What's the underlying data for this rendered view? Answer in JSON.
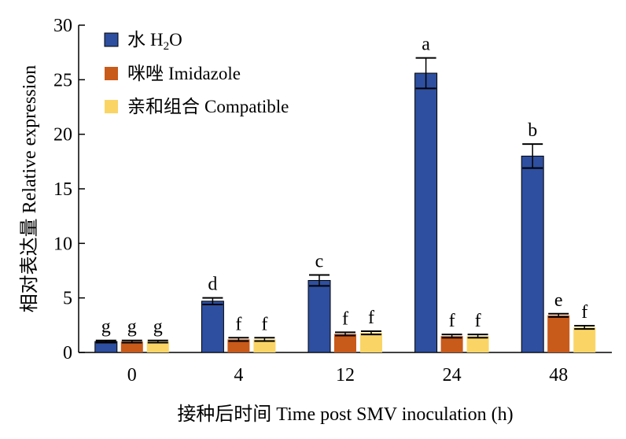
{
  "chart_data": {
    "type": "bar",
    "xlabel": "接种后时间 Time post SMV inoculation (h)",
    "ylabel": "相对表达量 Relative expression",
    "categories": [
      "0",
      "4",
      "12",
      "24",
      "48"
    ],
    "ylim": [
      0,
      30
    ],
    "yticks": [
      "0",
      "5",
      "10",
      "15",
      "20",
      "25",
      "30"
    ],
    "grid": false,
    "legend_position": "top-left",
    "series": [
      {
        "name": "水 H2O",
        "legend_cn": "水",
        "legend_en": "H",
        "legend_sub": "2",
        "legend_end": "O",
        "color": "#2e4fa0",
        "values": [
          1.0,
          4.7,
          6.6,
          25.6,
          18.0
        ],
        "errors": [
          0.1,
          0.3,
          0.5,
          1.4,
          1.1
        ],
        "letters": [
          "g",
          "d",
          "c",
          "a",
          "b"
        ]
      },
      {
        "name": "咪唑 Imidazole",
        "legend_cn": "咪唑",
        "legend_en": "Imidazole",
        "color": "#c85a1a",
        "values": [
          1.0,
          1.2,
          1.7,
          1.5,
          3.4
        ],
        "errors": [
          0.1,
          0.15,
          0.15,
          0.15,
          0.15
        ],
        "letters": [
          "g",
          "f",
          "f",
          "f",
          "e"
        ]
      },
      {
        "name": "亲和组合 Compatible",
        "legend_cn": "亲和组合",
        "legend_en": "Compatible",
        "color": "#fad566",
        "values": [
          1.0,
          1.2,
          1.8,
          1.5,
          2.3
        ],
        "errors": [
          0.1,
          0.15,
          0.15,
          0.15,
          0.15
        ],
        "letters": [
          "g",
          "f",
          "f",
          "f",
          "f"
        ]
      }
    ]
  }
}
